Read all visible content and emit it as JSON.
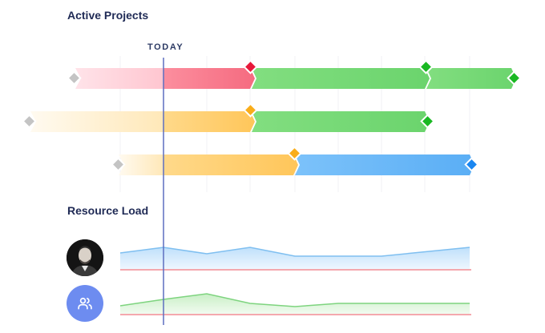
{
  "headers": {
    "active_projects": "Active Projects",
    "resource_load": "Resource Load",
    "today": "TODAY"
  },
  "colors": {
    "pink_light": "#ffd6de",
    "pink": "#f87d90",
    "green": "#72d873",
    "green_diamond": "#19b822",
    "red_diamond": "#e8183a",
    "orange_light": "#fff0cf",
    "orange": "#ffcf6a",
    "orange_diamond": "#f9ad1a",
    "blue": "#6db7f8",
    "blue_diamond": "#1a86f0",
    "grey_diamond": "#c4c4c4",
    "today_line": "#5d6fc0",
    "load_blue_line": "#7fbff0",
    "load_green_line": "#7ed47f",
    "load_baseline": "#f08b94",
    "team_avatar": "#6d8cf0"
  },
  "avatars": [
    {
      "name": "user-avatar",
      "icon": "person-photo"
    },
    {
      "name": "team-avatar",
      "icon": "people-icon"
    }
  ]
}
